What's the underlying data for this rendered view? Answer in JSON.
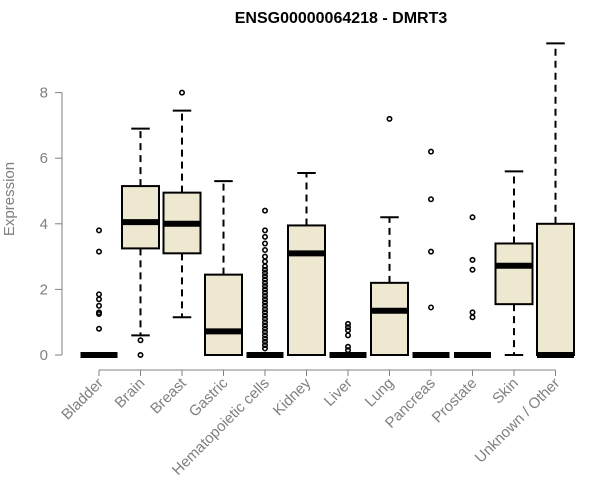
{
  "chart_data": {
    "type": "box",
    "title": "ENSG00000064218 - DMRT3",
    "xlabel": "",
    "ylabel": "Expression",
    "ylim": [
      0,
      9.6
    ],
    "yticks": [
      0,
      2,
      4,
      6,
      8
    ],
    "ytick_labels": [
      "0",
      "2",
      "4",
      "6",
      "8"
    ],
    "grid": false,
    "box_fill": "#EEE8D0",
    "box_stroke": "#000000",
    "axis_color": "#808080",
    "categories": [
      "Bladder",
      "Brain",
      "Breast",
      "Gastric",
      "Hematopoietic cells",
      "Kidney",
      "Liver",
      "Lung",
      "Pancreas",
      "Prostate",
      "Skin",
      "Unknown / Other"
    ],
    "boxes": [
      {
        "category": "Bladder",
        "whisker_low": 0,
        "q1": 0,
        "median": 0,
        "q3": 0,
        "whisker_high": 0,
        "outliers": [
          3.8,
          3.15,
          1.85,
          1.7,
          1.5,
          1.3,
          1.25,
          0.8
        ]
      },
      {
        "category": "Brain",
        "whisker_low": 0.6,
        "q1": 3.25,
        "median": 4.05,
        "q3": 5.15,
        "whisker_high": 6.9,
        "outliers": [
          0.45,
          0.0
        ]
      },
      {
        "category": "Breast",
        "whisker_low": 1.15,
        "q1": 3.1,
        "median": 4.0,
        "q3": 4.95,
        "whisker_high": 7.45,
        "outliers": [
          8.0
        ]
      },
      {
        "category": "Gastric",
        "whisker_low": 0,
        "q1": 0,
        "median": 0.72,
        "q3": 2.45,
        "whisker_high": 5.3,
        "outliers": []
      },
      {
        "category": "Hematopoietic cells",
        "whisker_low": 0,
        "q1": 0,
        "median": 0,
        "q3": 0,
        "whisker_high": 0,
        "outliers": [
          4.4,
          3.8,
          3.6,
          3.4,
          3.2,
          3.0,
          2.85,
          2.7,
          2.6,
          2.5,
          2.4,
          2.3,
          2.2,
          2.1,
          2.0,
          1.9,
          1.8,
          1.7,
          1.6,
          1.5,
          1.4,
          1.3,
          1.2,
          1.1,
          1.0,
          0.9,
          0.8,
          0.7,
          0.6,
          0.5,
          0.4,
          0.3,
          0.2
        ]
      },
      {
        "category": "Kidney",
        "whisker_low": 0,
        "q1": 0,
        "median": 3.1,
        "q3": 3.95,
        "whisker_high": 5.55,
        "outliers": []
      },
      {
        "category": "Liver",
        "whisker_low": 0,
        "q1": 0,
        "median": 0,
        "q3": 0,
        "whisker_high": 0,
        "outliers": [
          0.95,
          0.85,
          0.75,
          0.6,
          0.25,
          0.15
        ]
      },
      {
        "category": "Lung",
        "whisker_low": 0,
        "q1": 0,
        "median": 1.35,
        "q3": 2.2,
        "whisker_high": 4.2,
        "outliers": [
          7.2
        ]
      },
      {
        "category": "Pancreas",
        "whisker_low": 0,
        "q1": 0,
        "median": 0,
        "q3": 0,
        "whisker_high": 0,
        "outliers": [
          6.2,
          4.75,
          3.15,
          1.45
        ]
      },
      {
        "category": "Prostate",
        "whisker_low": 0,
        "q1": 0,
        "median": 0,
        "q3": 0,
        "whisker_high": 0,
        "outliers": [
          4.2,
          2.9,
          2.6,
          1.3,
          1.15
        ]
      },
      {
        "category": "Skin",
        "whisker_low": 0,
        "q1": 1.55,
        "median": 2.72,
        "q3": 3.4,
        "whisker_high": 5.6,
        "outliers": []
      },
      {
        "category": "Unknown / Other",
        "whisker_low": 0,
        "q1": 0,
        "median": 0,
        "q3": 4.0,
        "whisker_high": 9.5,
        "outliers": []
      }
    ]
  }
}
